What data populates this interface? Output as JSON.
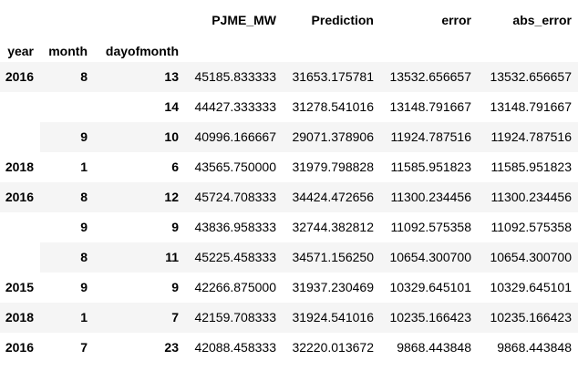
{
  "columns": [
    "PJME_MW",
    "Prediction",
    "error",
    "abs_error"
  ],
  "index_names": [
    "year",
    "month",
    "dayofmonth"
  ],
  "rows": [
    {
      "year": "2016",
      "month": "8",
      "day": "13",
      "pjme": "45185.833333",
      "pred": "31653.175781",
      "err": "13532.656657",
      "abs": "13532.656657"
    },
    {
      "year": "",
      "month": "",
      "day": "14",
      "pjme": "44427.333333",
      "pred": "31278.541016",
      "err": "13148.791667",
      "abs": "13148.791667"
    },
    {
      "year": "",
      "month": "9",
      "day": "10",
      "pjme": "40996.166667",
      "pred": "29071.378906",
      "err": "11924.787516",
      "abs": "11924.787516"
    },
    {
      "year": "2018",
      "month": "1",
      "day": "6",
      "pjme": "43565.750000",
      "pred": "31979.798828",
      "err": "11585.951823",
      "abs": "11585.951823"
    },
    {
      "year": "2016",
      "month": "8",
      "day": "12",
      "pjme": "45724.708333",
      "pred": "34424.472656",
      "err": "11300.234456",
      "abs": "11300.234456"
    },
    {
      "year": "",
      "month": "9",
      "day": "9",
      "pjme": "43836.958333",
      "pred": "32744.382812",
      "err": "11092.575358",
      "abs": "11092.575358"
    },
    {
      "year": "",
      "month": "8",
      "day": "11",
      "pjme": "45225.458333",
      "pred": "34571.156250",
      "err": "10654.300700",
      "abs": "10654.300700"
    },
    {
      "year": "2015",
      "month": "9",
      "day": "9",
      "pjme": "42266.875000",
      "pred": "31937.230469",
      "err": "10329.645101",
      "abs": "10329.645101"
    },
    {
      "year": "2018",
      "month": "1",
      "day": "7",
      "pjme": "42159.708333",
      "pred": "31924.541016",
      "err": "10235.166423",
      "abs": "10235.166423"
    },
    {
      "year": "2016",
      "month": "7",
      "day": "23",
      "pjme": "42088.458333",
      "pred": "32220.013672",
      "err": "9868.443848",
      "abs": "9868.443848"
    }
  ]
}
